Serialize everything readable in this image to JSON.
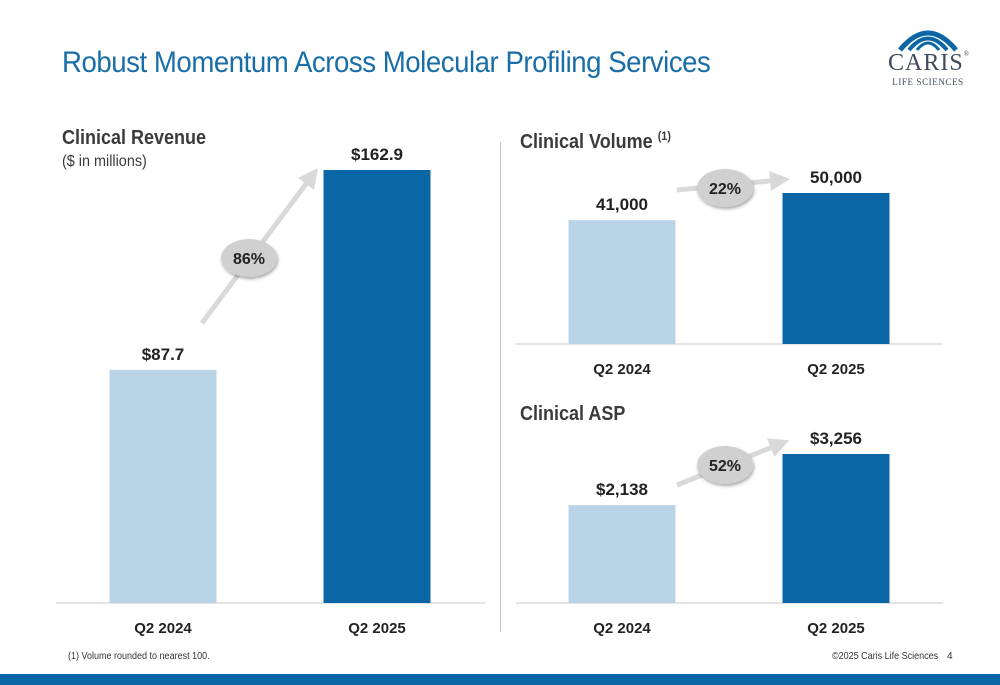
{
  "page": {
    "title": "Robust Momentum Across Molecular Profiling Services",
    "logo": {
      "name": "CARIS",
      "registered": "®",
      "subtitle": "LIFE SCIENCES"
    },
    "footnote": "(1) Volume rounded to nearest 100.",
    "copyright": "©2025 Caris Life Sciences",
    "page_number": "4"
  },
  "colors": {
    "light_bar": "#b8d4e6",
    "dark_bar": "#0a66a5",
    "title": "#1a6ea8",
    "arrow": "#d9d9d9",
    "bubble": "#d0d0d0"
  },
  "panels": {
    "revenue": {
      "title": "Clinical Revenue",
      "subtitle": "($ in millions)"
    },
    "volume": {
      "title": "Clinical Volume",
      "sup": "(1)"
    },
    "asp": {
      "title": "Clinical ASP"
    }
  },
  "chart_data": [
    {
      "type": "bar",
      "title": "Clinical Revenue",
      "subtitle": "($ in millions)",
      "categories": [
        "Q2 2024",
        "Q2 2025"
      ],
      "values": [
        87.7,
        162.9
      ],
      "data_labels": [
        "$87.7",
        "$162.9"
      ],
      "growth_label": "86%",
      "ylim": [
        0,
        162.9
      ]
    },
    {
      "type": "bar",
      "title": "Clinical Volume",
      "categories": [
        "Q2 2024",
        "Q2 2025"
      ],
      "values": [
        41000,
        50000
      ],
      "data_labels": [
        "41,000",
        "50,000"
      ],
      "growth_label": "22%",
      "ylim": [
        0,
        50000
      ]
    },
    {
      "type": "bar",
      "title": "Clinical ASP",
      "categories": [
        "Q2 2024",
        "Q2 2025"
      ],
      "values": [
        2138,
        3256
      ],
      "data_labels": [
        "$2,138",
        "$3,256"
      ],
      "growth_label": "52%",
      "ylim": [
        0,
        3256
      ]
    }
  ]
}
